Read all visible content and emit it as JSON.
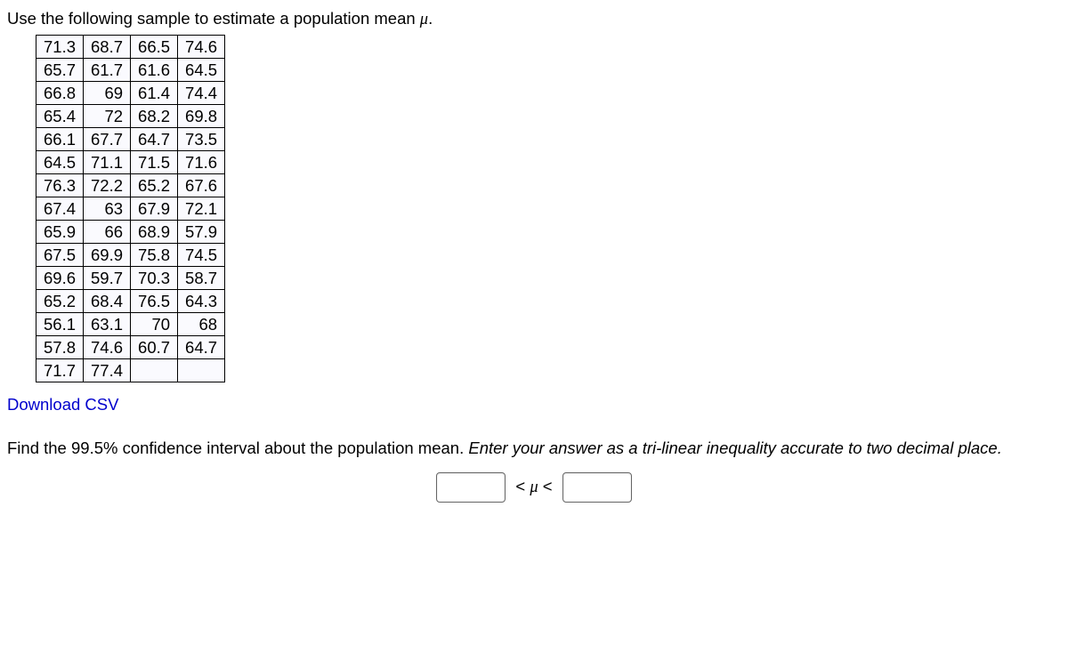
{
  "prompt_prefix": "Use the following sample to estimate a population mean ",
  "mu_symbol": "μ",
  "prompt_suffix": ".",
  "table": {
    "columns": 4,
    "cell_bg": "#fafafe",
    "border_color": "#000000",
    "font_size_pt": 14,
    "cell_align": "right",
    "rows": [
      [
        "71.3",
        "68.7",
        "66.5",
        "74.6"
      ],
      [
        "65.7",
        "61.7",
        "61.6",
        "64.5"
      ],
      [
        "66.8",
        "69",
        "61.4",
        "74.4"
      ],
      [
        "65.4",
        "72",
        "68.2",
        "69.8"
      ],
      [
        "66.1",
        "67.7",
        "64.7",
        "73.5"
      ],
      [
        "64.5",
        "71.1",
        "71.5",
        "71.6"
      ],
      [
        "76.3",
        "72.2",
        "65.2",
        "67.6"
      ],
      [
        "67.4",
        "63",
        "67.9",
        "72.1"
      ],
      [
        "65.9",
        "66",
        "68.9",
        "57.9"
      ],
      [
        "67.5",
        "69.9",
        "75.8",
        "74.5"
      ],
      [
        "69.6",
        "59.7",
        "70.3",
        "58.7"
      ],
      [
        "65.2",
        "68.4",
        "76.5",
        "64.3"
      ],
      [
        "56.1",
        "63.1",
        "70",
        "68"
      ],
      [
        "57.8",
        "74.6",
        "60.7",
        "64.7"
      ],
      [
        "71.7",
        "77.4",
        "",
        ""
      ]
    ]
  },
  "download_link": "Download CSV",
  "question_part1": "Find the 99.5% confidence interval about the population mean. ",
  "question_part2_italic": "Enter your answer as a tri-linear inequality accurate to two decimal place.",
  "inequality_left": "<",
  "inequality_mu": "μ",
  "inequality_right": "<",
  "colors": {
    "text": "#000000",
    "link": "#0000cd",
    "background": "#ffffff"
  }
}
